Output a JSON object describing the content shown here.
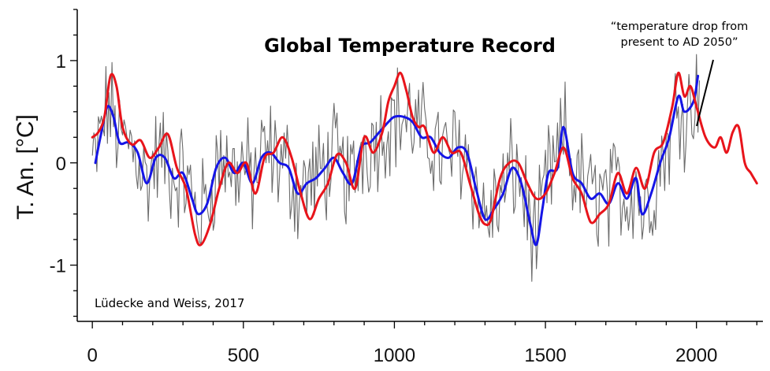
{
  "chart_data": {
    "type": "line",
    "title": "Global Temperature Record",
    "xlabel": "",
    "ylabel": "T. An. [°C]",
    "xlim": [
      -50,
      2220
    ],
    "ylim": [
      -1.55,
      1.5
    ],
    "x_ticks": [
      0,
      500,
      1000,
      1500,
      2000
    ],
    "x_tick_labels": [
      "0",
      "500",
      "1000",
      "1500",
      "2000"
    ],
    "y_ticks": [
      1,
      0,
      -1
    ],
    "y_tick_labels": [
      "1",
      "0",
      "-1"
    ],
    "annotation": {
      "text_lines": [
        "“temperature drop from",
        "present to AD 2050”"
      ],
      "points_to": [
        2015,
        0.42
      ]
    },
    "credit": "Lüdecke and Weiss, 2017",
    "series": [
      {
        "name": "red smoothed reconstruction + projection",
        "color": "#e8141b",
        "x": [
          0,
          20,
          40,
          60,
          80,
          100,
          130,
          160,
          190,
          220,
          250,
          280,
          310,
          340,
          360,
          390,
          420,
          450,
          480,
          510,
          540,
          570,
          600,
          630,
          660,
          690,
          720,
          750,
          780,
          810,
          840,
          870,
          900,
          930,
          960,
          980,
          1000,
          1020,
          1040,
          1060,
          1080,
          1100,
          1130,
          1160,
          1190,
          1220,
          1250,
          1280,
          1300,
          1320,
          1350,
          1380,
          1410,
          1440,
          1470,
          1500,
          1530,
          1560,
          1590,
          1620,
          1650,
          1680,
          1710,
          1740,
          1770,
          1800,
          1830,
          1860,
          1890,
          1920,
          1940,
          1960,
          1980,
          2000,
          2030,
          2060,
          2080,
          2100,
          2120,
          2140,
          2160,
          2180,
          2200
        ],
        "y": [
          0.25,
          0.3,
          0.45,
          0.85,
          0.75,
          0.35,
          0.18,
          0.22,
          0.05,
          0.15,
          0.28,
          -0.05,
          -0.25,
          -0.7,
          -0.8,
          -0.6,
          -0.25,
          0.0,
          -0.1,
          0.0,
          -0.3,
          0.05,
          0.1,
          0.25,
          0.05,
          -0.3,
          -0.55,
          -0.35,
          -0.2,
          0.08,
          0.0,
          -0.25,
          0.25,
          0.1,
          0.3,
          0.6,
          0.75,
          0.88,
          0.7,
          0.45,
          0.35,
          0.35,
          0.1,
          0.25,
          0.1,
          0.1,
          -0.2,
          -0.5,
          -0.6,
          -0.55,
          -0.15,
          0.0,
          0.0,
          -0.2,
          -0.35,
          -0.3,
          -0.1,
          0.15,
          -0.15,
          -0.3,
          -0.58,
          -0.5,
          -0.4,
          -0.1,
          -0.3,
          -0.05,
          -0.25,
          0.1,
          0.2,
          0.55,
          0.88,
          0.65,
          0.75,
          0.55,
          0.25,
          0.15,
          0.25,
          0.1,
          0.3,
          0.35,
          0.0,
          -0.1,
          -0.2
        ]
      },
      {
        "name": "blue smoothed reconstruction",
        "color": "#1515e6",
        "x": [
          10,
          30,
          50,
          70,
          90,
          120,
          150,
          180,
          210,
          240,
          270,
          300,
          330,
          350,
          380,
          410,
          440,
          470,
          500,
          530,
          560,
          590,
          620,
          650,
          680,
          710,
          740,
          770,
          800,
          830,
          860,
          890,
          920,
          950,
          980,
          1000,
          1030,
          1060,
          1090,
          1120,
          1150,
          1180,
          1210,
          1240,
          1270,
          1300,
          1330,
          1360,
          1390,
          1420,
          1450,
          1470,
          1490,
          1510,
          1540,
          1560,
          1590,
          1620,
          1650,
          1680,
          1710,
          1740,
          1770,
          1800,
          1820,
          1850,
          1880,
          1910,
          1940,
          1960,
          1990,
          2005
        ],
        "y": [
          0.0,
          0.3,
          0.55,
          0.45,
          0.2,
          0.2,
          0.1,
          -0.2,
          0.05,
          0.05,
          -0.15,
          -0.1,
          -0.35,
          -0.5,
          -0.4,
          -0.05,
          0.05,
          -0.1,
          0.0,
          -0.2,
          0.05,
          0.1,
          0.0,
          -0.05,
          -0.3,
          -0.2,
          -0.15,
          -0.05,
          0.05,
          -0.1,
          -0.2,
          0.15,
          0.2,
          0.3,
          0.4,
          0.45,
          0.45,
          0.4,
          0.25,
          0.25,
          0.1,
          0.05,
          0.15,
          0.1,
          -0.25,
          -0.55,
          -0.45,
          -0.3,
          -0.05,
          -0.2,
          -0.6,
          -0.8,
          -0.45,
          -0.1,
          -0.05,
          0.35,
          -0.1,
          -0.2,
          -0.35,
          -0.3,
          -0.4,
          -0.2,
          -0.35,
          -0.15,
          -0.5,
          -0.3,
          0.0,
          0.25,
          0.65,
          0.5,
          0.6,
          0.85
        ]
      }
    ],
    "noisy_series": {
      "name": "grey annual data",
      "color": "#6b6b6b",
      "x_start": 0,
      "x_end": 2010,
      "step": 5,
      "description": "high-variance annual values tracking the blue curve, spread roughly ±0.45 °C",
      "amplitude": 0.45
    }
  }
}
